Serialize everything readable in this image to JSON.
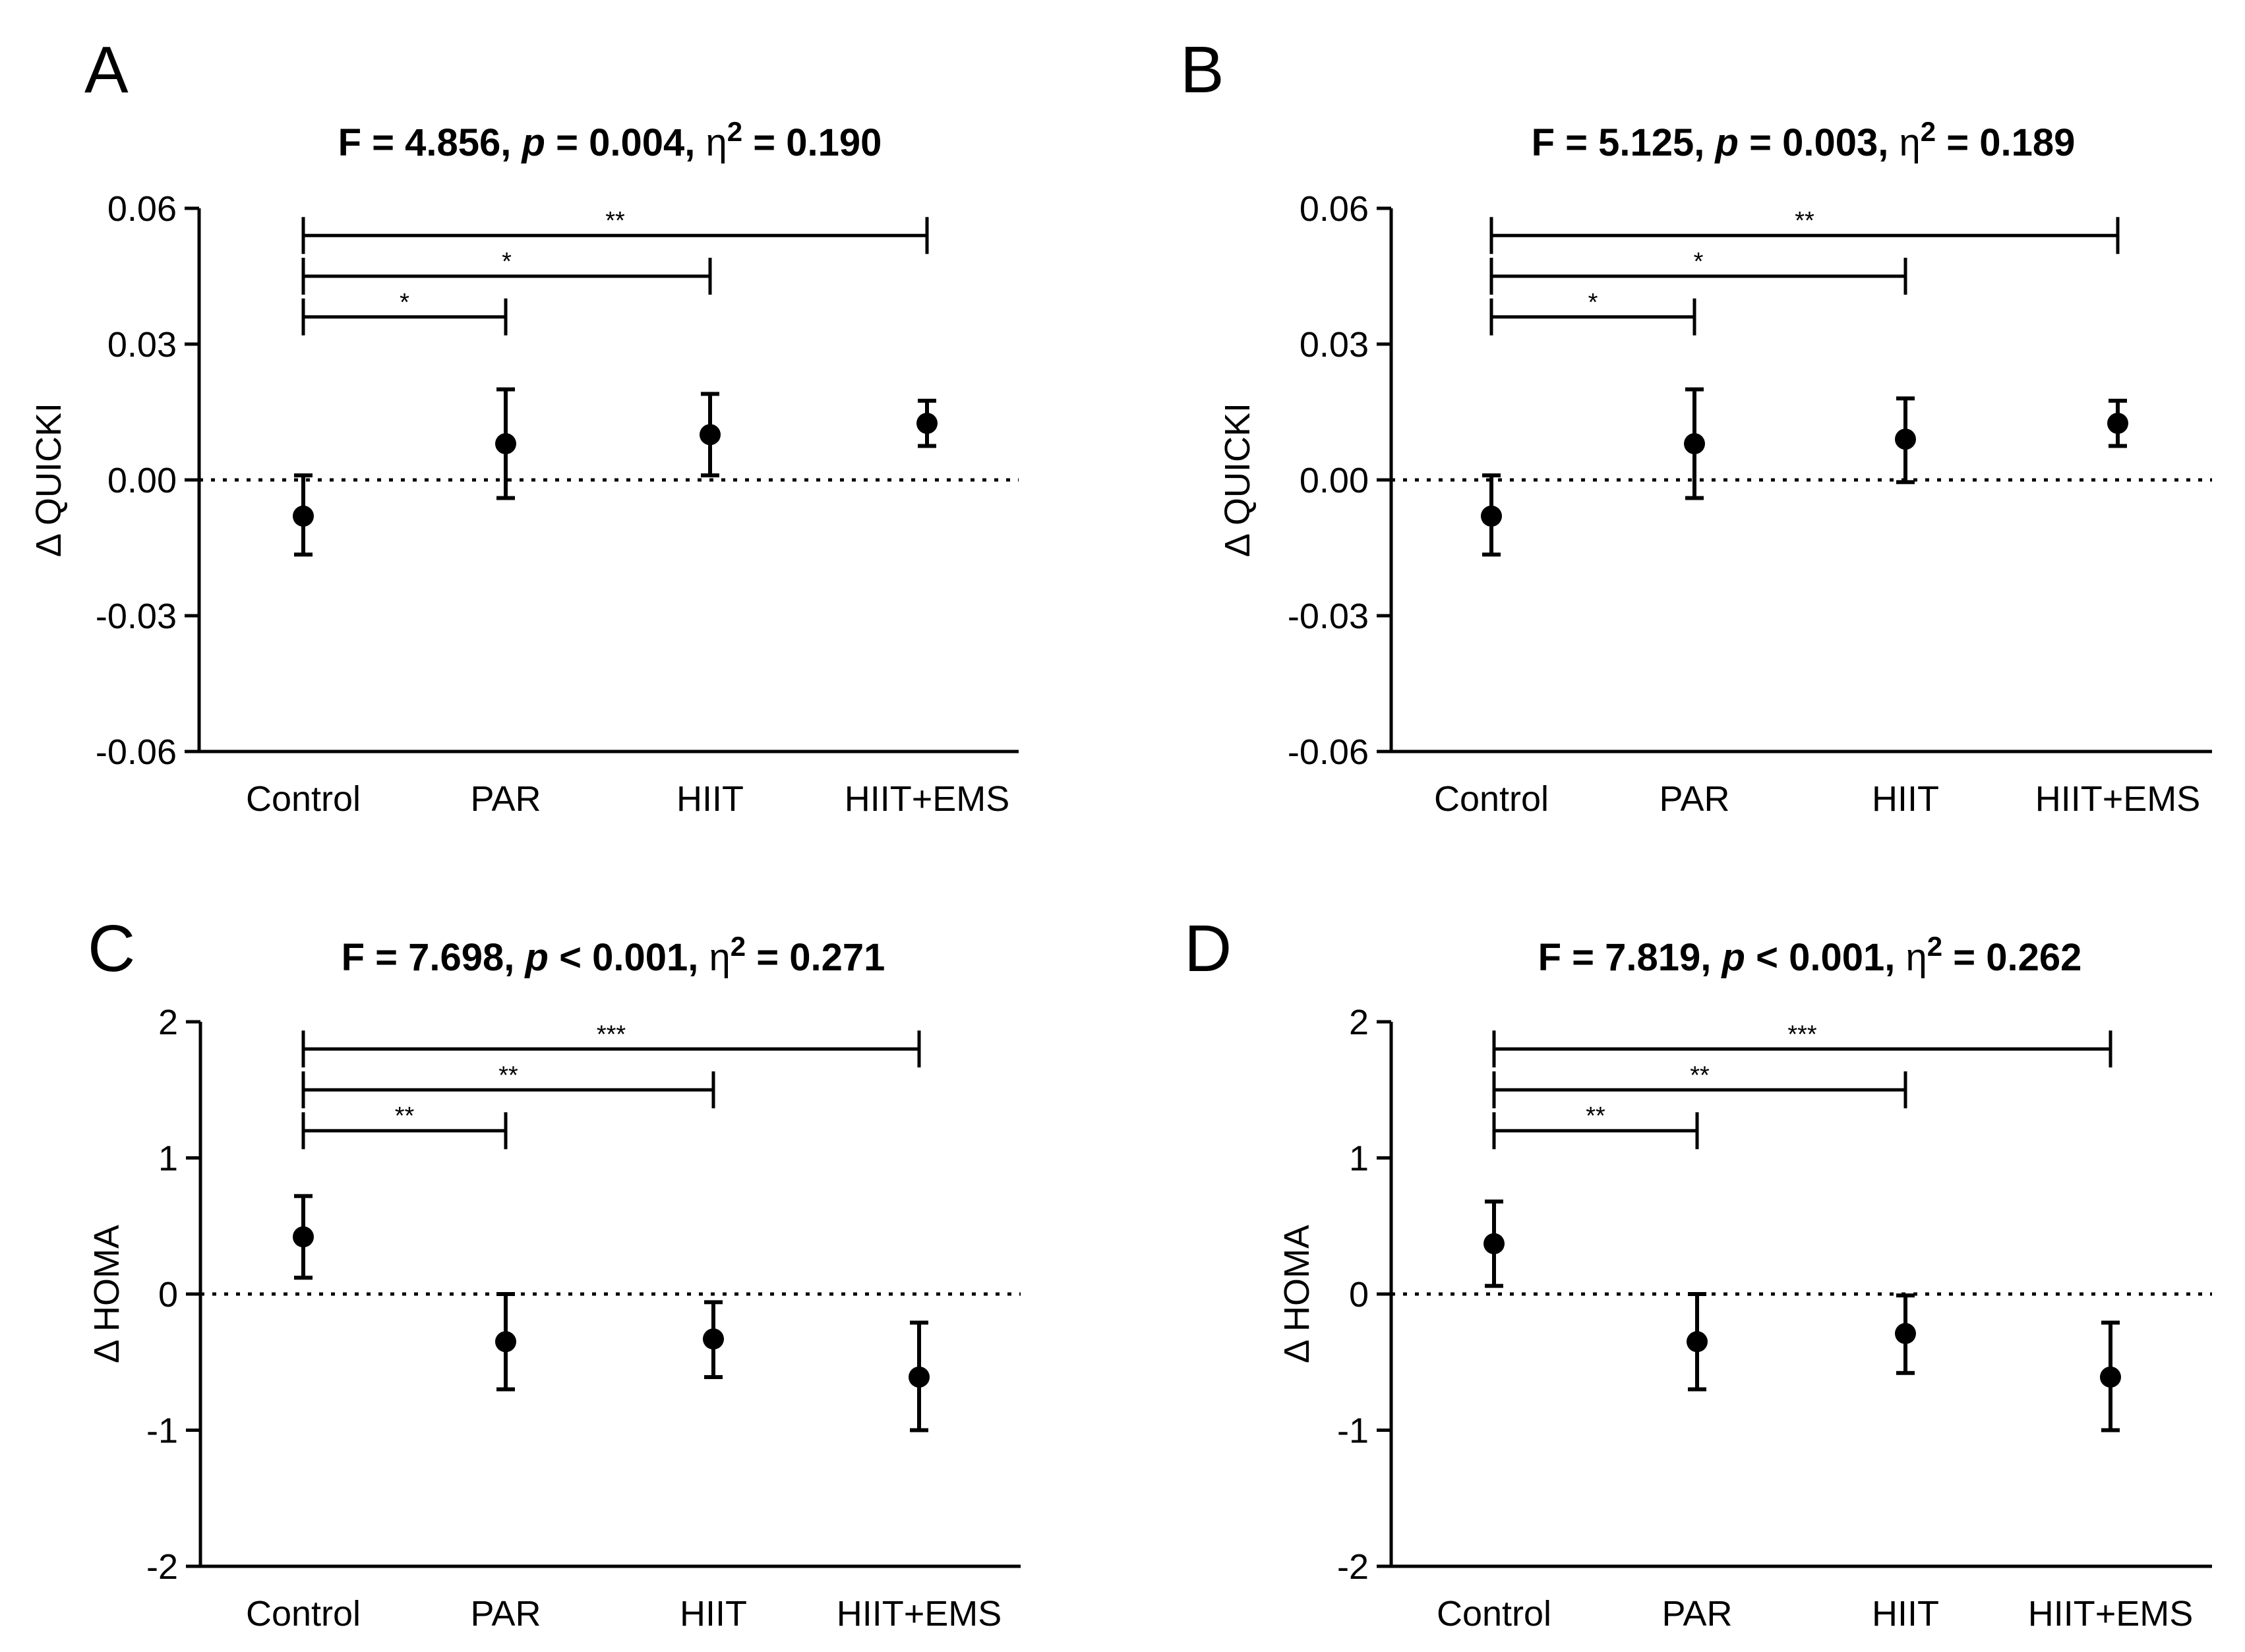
{
  "figure": {
    "panels": [
      "A",
      "B",
      "C",
      "D"
    ]
  },
  "chart_data": [
    {
      "panel": "A",
      "type": "scatter",
      "title": "F = 4.856, p = 0.004, η2 = 0.190",
      "title_parts": {
        "f": "F = 4.856, ",
        "p": "p",
        "pv": " = 0.004, ",
        "eta": "η",
        "sup": "2",
        "ev": " = 0.190"
      },
      "ylabel": "Δ QUICKI",
      "categories": [
        "Control",
        "PAR",
        "HIIT",
        "HIIT+EMS"
      ],
      "ylim": [
        -0.06,
        0.06
      ],
      "yticks": [
        0.06,
        0.03,
        0.0,
        -0.03,
        -0.06
      ],
      "ytick_labels": [
        "0.06",
        "0.03",
        "0.00",
        "-0.03",
        "-0.06"
      ],
      "reference_line": 0,
      "series": [
        {
          "name": "mean",
          "values": [
            -0.008,
            0.008,
            0.01,
            0.0125
          ],
          "lower": [
            -0.0165,
            -0.004,
            0.001,
            0.0075
          ],
          "upper": [
            0.001,
            0.02,
            0.019,
            0.0175
          ]
        }
      ],
      "comparisons": [
        {
          "from": "Control",
          "to": "PAR",
          "label": "*",
          "y": 0.036
        },
        {
          "from": "Control",
          "to": "HIIT",
          "label": "*",
          "y": 0.045
        },
        {
          "from": "Control",
          "to": "HIIT+EMS",
          "label": "**",
          "y": 0.054
        }
      ]
    },
    {
      "panel": "B",
      "type": "scatter",
      "title": "F = 5.125, p = 0.003, η2 = 0.189",
      "title_parts": {
        "f": "F = 5.125, ",
        "p": "p",
        "pv": " = 0.003, ",
        "eta": "η",
        "sup": "2",
        "ev": " = 0.189"
      },
      "ylabel": "Δ QUICKI",
      "categories": [
        "Control",
        "PAR",
        "HIIT",
        "HIIT+EMS"
      ],
      "ylim": [
        -0.06,
        0.06
      ],
      "yticks": [
        0.06,
        0.03,
        0.0,
        -0.03,
        -0.06
      ],
      "ytick_labels": [
        "0.06",
        "0.03",
        "0.00",
        "-0.03",
        "-0.06"
      ],
      "reference_line": 0,
      "series": [
        {
          "name": "mean",
          "values": [
            -0.008,
            0.008,
            0.009,
            0.0125
          ],
          "lower": [
            -0.0165,
            -0.004,
            -0.0005,
            0.0075
          ],
          "upper": [
            0.001,
            0.02,
            0.018,
            0.0175
          ]
        }
      ],
      "comparisons": [
        {
          "from": "Control",
          "to": "PAR",
          "label": "*",
          "y": 0.036
        },
        {
          "from": "Control",
          "to": "HIIT",
          "label": "*",
          "y": 0.045
        },
        {
          "from": "Control",
          "to": "HIIT+EMS",
          "label": "**",
          "y": 0.054
        }
      ]
    },
    {
      "panel": "C",
      "type": "scatter",
      "title": "F = 7.698, p < 0.001, η2 = 0.271",
      "title_parts": {
        "f": "F = 7.698, ",
        "p": "p",
        "pv": " < 0.001, ",
        "eta": "η",
        "sup": "2",
        "ev": " = 0.271"
      },
      "ylabel": "Δ HOMA",
      "categories": [
        "Control",
        "PAR",
        "HIIT",
        "HIIT+EMS"
      ],
      "ylim": [
        -2,
        2
      ],
      "yticks": [
        2,
        1,
        0,
        -1,
        -2
      ],
      "ytick_labels": [
        "2",
        "1",
        "0",
        "-1",
        "-2"
      ],
      "reference_line": 0,
      "series": [
        {
          "name": "mean",
          "values": [
            0.42,
            -0.35,
            -0.33,
            -0.61
          ],
          "lower": [
            0.12,
            -0.7,
            -0.61,
            -1.0
          ],
          "upper": [
            0.72,
            0.0,
            -0.06,
            -0.21
          ]
        }
      ],
      "comparisons": [
        {
          "from": "Control",
          "to": "PAR",
          "label": "**",
          "y": 1.2
        },
        {
          "from": "Control",
          "to": "HIIT",
          "label": "**",
          "y": 1.5
        },
        {
          "from": "Control",
          "to": "HIIT+EMS",
          "label": "***",
          "y": 1.8
        }
      ]
    },
    {
      "panel": "D",
      "type": "scatter",
      "title": "F = 7.819, p < 0.001, η2 = 0.262",
      "title_parts": {
        "f": "F = 7.819, ",
        "p": "p",
        "pv": " < 0.001, ",
        "eta": "η",
        "sup": "2",
        "ev": " = 0.262"
      },
      "ylabel": "Δ HOMA",
      "categories": [
        "Control",
        "PAR",
        "HIIT",
        "HIIT+EMS"
      ],
      "ylim": [
        -2,
        2
      ],
      "yticks": [
        2,
        1,
        0,
        -1,
        -2
      ],
      "ytick_labels": [
        "2",
        "1",
        "0",
        "-1",
        "-2"
      ],
      "reference_line": 0,
      "series": [
        {
          "name": "mean",
          "values": [
            0.37,
            -0.35,
            -0.29,
            -0.61
          ],
          "lower": [
            0.06,
            -0.7,
            -0.58,
            -1.0
          ],
          "upper": [
            0.68,
            0.0,
            -0.01,
            -0.21
          ]
        }
      ],
      "comparisons": [
        {
          "from": "Control",
          "to": "PAR",
          "label": "**",
          "y": 1.2
        },
        {
          "from": "Control",
          "to": "HIIT",
          "label": "**",
          "y": 1.5
        },
        {
          "from": "Control",
          "to": "HIIT+EMS",
          "label": "***",
          "y": 1.8
        }
      ]
    }
  ]
}
